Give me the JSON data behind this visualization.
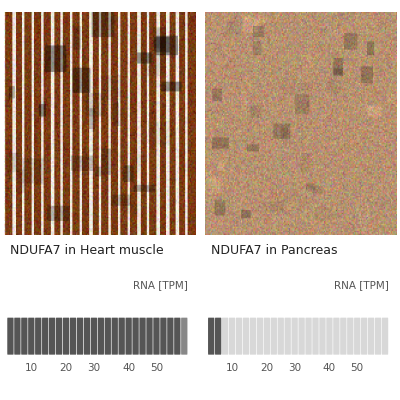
{
  "title_left": "NDUFA7 in Heart muscle",
  "title_right": "NDUFA7 in Pancreas",
  "rna_label": "RNA [TPM]",
  "scale_ticks": [
    10,
    20,
    30,
    40,
    50
  ],
  "num_bars": 26,
  "bar_width": 0.7,
  "bar_gap": 0.3,
  "heart_bar_color_dark": "#555555",
  "heart_bar_color_light": "#888888",
  "pancreas_bar_color_dark": "#555555",
  "pancreas_bar_color_light": "#d8d8d8",
  "bg_color": "#ffffff",
  "text_color": "#222222",
  "label_fontsize": 9,
  "tick_fontsize": 7.5,
  "rna_fontsize": 7.5,
  "fig_width": 4.0,
  "fig_height": 4.0,
  "heart_tpm_value": 55,
  "pancreas_tpm_value": 5,
  "left_image_color": "#7B3A10",
  "right_image_color": "#C49A6C"
}
